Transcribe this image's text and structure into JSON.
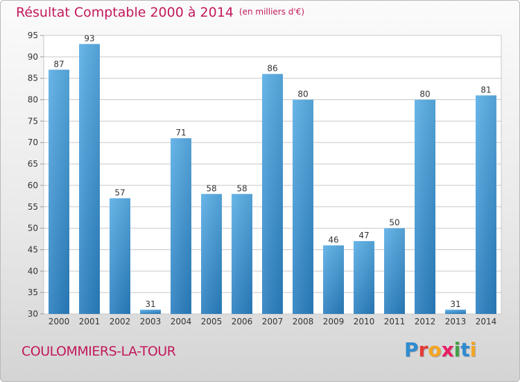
{
  "title": "Résultat Comptable 2000 à 2014",
  "unit_note": "(en milliers d'€)",
  "town": "COULOMMIERS-LA-TOUR",
  "logo": {
    "text": "Proxiti",
    "letter_colors": [
      "#2e8bd0",
      "#e53935",
      "#f5a623",
      "#e91e63",
      "#43a047",
      "#2e8bd0",
      "#f5a623"
    ]
  },
  "colors": {
    "title": "#c2185b",
    "bar_top": "#5aaee6",
    "bar_bottom": "#2a7fc0",
    "grid": "#c8c8c8"
  },
  "chart_data": {
    "type": "bar",
    "categories": [
      "2000",
      "2001",
      "2002",
      "2003",
      "2004",
      "2005",
      "2006",
      "2007",
      "2008",
      "2009",
      "2010",
      "2011",
      "2012",
      "2013",
      "2014"
    ],
    "values": [
      87,
      93,
      57,
      31,
      71,
      58,
      58,
      86,
      80,
      46,
      47,
      50,
      80,
      31,
      81
    ],
    "title": "Résultat Comptable 2000 à 2014",
    "xlabel": "",
    "ylabel": "",
    "ylim": [
      30,
      95
    ],
    "yticks": [
      30,
      35,
      40,
      45,
      50,
      55,
      60,
      65,
      70,
      75,
      80,
      85,
      90,
      95
    ],
    "grid": true,
    "legend": "none"
  }
}
